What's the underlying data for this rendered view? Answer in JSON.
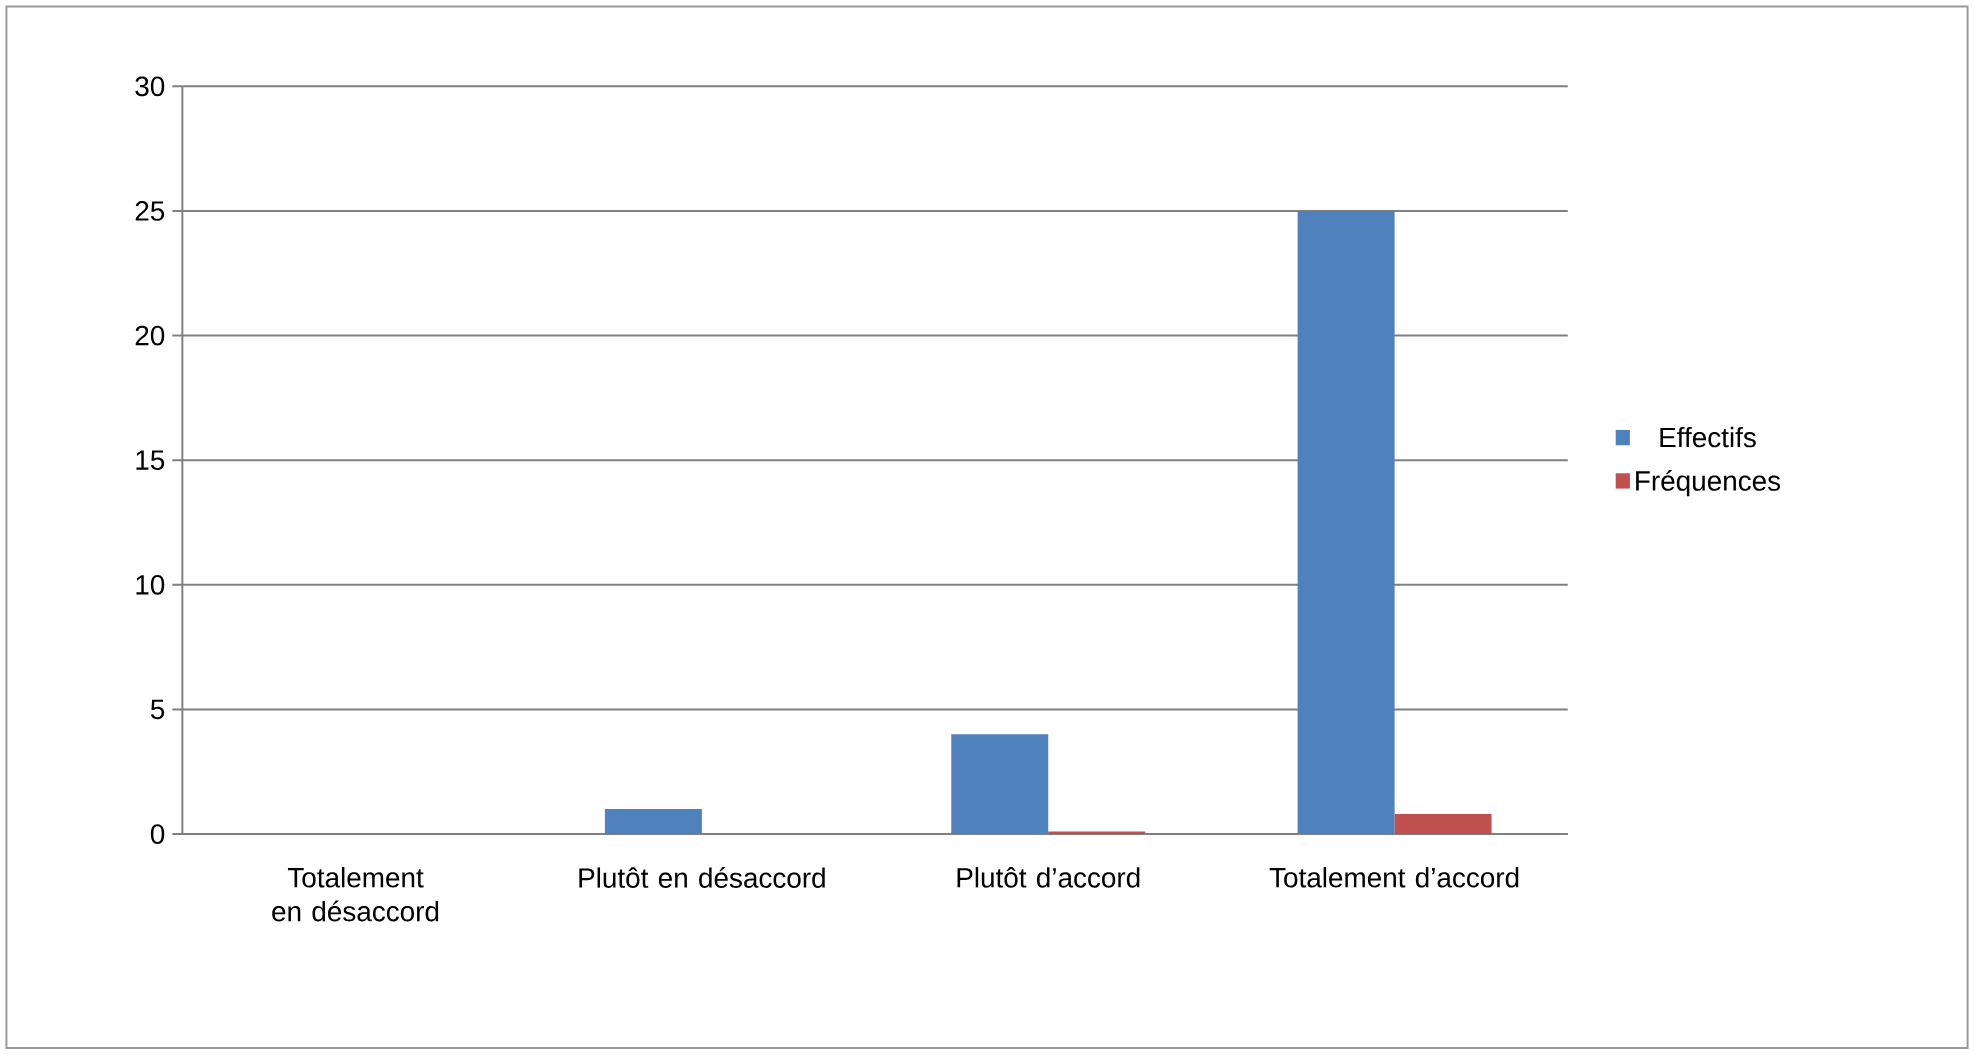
{
  "chart_data": {
    "type": "bar",
    "categories": [
      "Totalement en désaccord",
      "Plutôt en désaccord",
      "Plutôt d’accord",
      "Totalement d’accord"
    ],
    "series": [
      {
        "name": "Effectifs",
        "color": "#4f81bd",
        "values": [
          0,
          1,
          4,
          25
        ]
      },
      {
        "name": "Fréquences",
        "color": "#c0504d",
        "values": [
          0,
          0,
          0.1,
          0.8
        ]
      }
    ],
    "ylim": [
      0,
      30
    ],
    "yticks": [
      0,
      5,
      10,
      15,
      20,
      25,
      30
    ],
    "grid": "y",
    "legend": "right"
  }
}
